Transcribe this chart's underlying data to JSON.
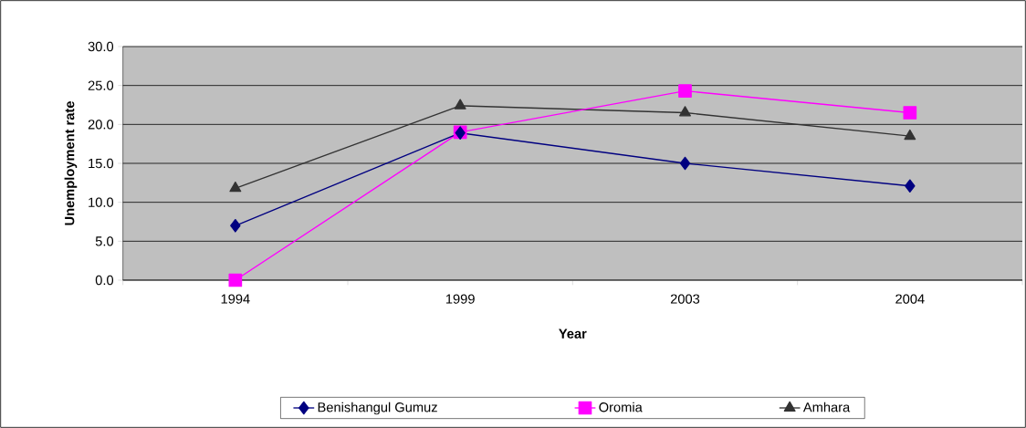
{
  "chart_data": {
    "type": "line",
    "xlabel": "Year",
    "ylabel": "Unemployment rate",
    "categories": [
      "1994",
      "1999",
      "2003",
      "2004"
    ],
    "series": [
      {
        "name": "Benishangul Gumuz",
        "color": "#000080",
        "marker": "diamond",
        "values": [
          7.0,
          18.9,
          15.0,
          12.1
        ]
      },
      {
        "name": "Oromia",
        "color": "#ff00ff",
        "marker": "square",
        "values": [
          0.0,
          19.0,
          24.3,
          21.5
        ]
      },
      {
        "name": "Amhara",
        "color": "#333333",
        "marker": "triangle",
        "values": [
          11.8,
          22.4,
          21.5,
          18.5
        ]
      }
    ],
    "ylim": [
      0,
      30
    ],
    "yticks": [
      {
        "value": 0,
        "label": "0.0"
      },
      {
        "value": 5,
        "label": "5.0"
      },
      {
        "value": 10,
        "label": "10.0"
      },
      {
        "value": 15,
        "label": "15.0"
      },
      {
        "value": 20,
        "label": "20.0"
      },
      {
        "value": 25,
        "label": "25.0"
      },
      {
        "value": 30,
        "label": "30.0"
      }
    ],
    "grid": "y",
    "legend": "bottom",
    "line_style": "solid"
  }
}
